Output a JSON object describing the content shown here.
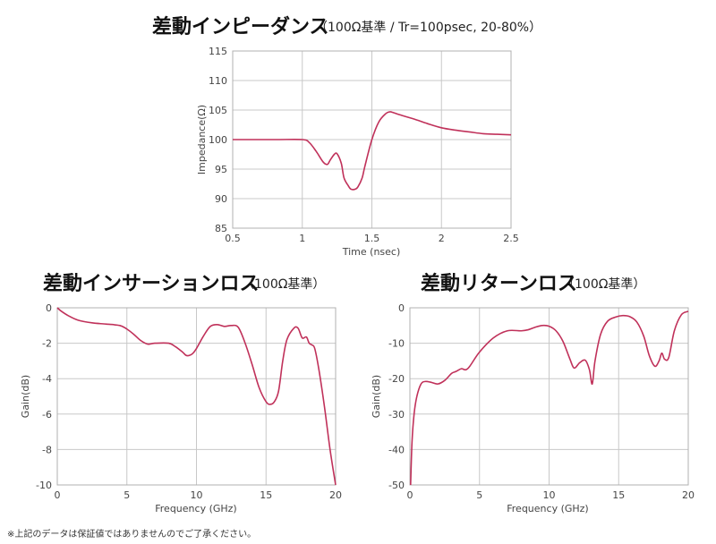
{
  "footnote": "※上記のデータは保証値ではありませんのでご了承ください。",
  "chart_data": [
    {
      "type": "line",
      "title": "差動インピーダンス",
      "subtitle": "（100Ω基準 / Tr=100psec, 20-80%）",
      "xlabel": "Time (nsec)",
      "ylabel": "Impedance(Ω)",
      "xlim": [
        0.5,
        2.5
      ],
      "ylim": [
        85,
        115
      ],
      "xticks": [
        0.5,
        1,
        1.5,
        2,
        2.5
      ],
      "xtick_labels": [
        "0.5",
        "1",
        "1.5",
        "2",
        "2.5"
      ],
      "yticks": [
        85,
        90,
        95,
        100,
        105,
        110,
        115
      ],
      "ytick_labels": [
        "85",
        "90",
        "95",
        "100",
        "105",
        "110",
        "115"
      ],
      "grid": true,
      "series": [
        {
          "x": [
            0.5,
            0.8,
            1.0,
            1.05,
            1.1,
            1.15,
            1.18,
            1.2,
            1.23,
            1.25,
            1.28,
            1.3,
            1.33,
            1.35,
            1.38,
            1.4,
            1.43,
            1.45,
            1.5,
            1.55,
            1.6,
            1.63,
            1.65,
            1.7,
            1.8,
            1.9,
            2.0,
            2.1,
            2.2,
            2.3,
            2.4,
            2.5
          ],
          "y": [
            100,
            100,
            100,
            99.5,
            98,
            96.2,
            95.8,
            96.5,
            97.5,
            97.6,
            96,
            93.5,
            92.2,
            91.6,
            91.6,
            92,
            93.5,
            95.5,
            100,
            103,
            104.4,
            104.7,
            104.6,
            104.2,
            103.5,
            102.7,
            102,
            101.6,
            101.3,
            101.0,
            100.9,
            100.8
          ]
        }
      ]
    },
    {
      "type": "line",
      "title": "差動インサーションロス",
      "subtitle": "（100Ω基準）",
      "xlabel": "Frequency (GHz)",
      "ylabel": "Gain(dB)",
      "xlim": [
        0,
        20
      ],
      "ylim": [
        -10,
        0
      ],
      "xticks": [
        0,
        5,
        10,
        15,
        20
      ],
      "xtick_labels": [
        "0",
        "5",
        "10",
        "15",
        "20"
      ],
      "yticks": [
        -10,
        -8,
        -6,
        -4,
        -2,
        0
      ],
      "ytick_labels": [
        "-10",
        "-8",
        "-6",
        "-4",
        "-2",
        "0"
      ],
      "grid": true,
      "series": [
        {
          "x": [
            0,
            0.3,
            0.8,
            1.5,
            2.5,
            3.5,
            4.5,
            5.0,
            5.5,
            6.0,
            6.5,
            7.0,
            8.0,
            8.5,
            9.0,
            9.3,
            9.7,
            10.0,
            10.5,
            11.0,
            11.5,
            12.0,
            12.5,
            13.0,
            13.5,
            14.0,
            14.5,
            15.0,
            15.3,
            15.6,
            15.9,
            16.2,
            16.5,
            17.0,
            17.3,
            17.6,
            17.9,
            18.1,
            18.3,
            18.5,
            18.8,
            19.2,
            19.6,
            20.0
          ],
          "y": [
            0,
            -0.2,
            -0.45,
            -0.7,
            -0.85,
            -0.92,
            -1.0,
            -1.2,
            -1.5,
            -1.85,
            -2.05,
            -2.0,
            -2.0,
            -2.2,
            -2.5,
            -2.7,
            -2.6,
            -2.3,
            -1.6,
            -1.05,
            -0.95,
            -1.05,
            -1.0,
            -1.1,
            -2.0,
            -3.2,
            -4.5,
            -5.3,
            -5.45,
            -5.3,
            -4.7,
            -3.0,
            -1.8,
            -1.15,
            -1.15,
            -1.7,
            -1.65,
            -2.0,
            -2.1,
            -2.3,
            -3.5,
            -5.6,
            -8.0,
            -10
          ]
        }
      ]
    },
    {
      "type": "line",
      "title": "差動リターンロス",
      "subtitle": "（100Ω基準）",
      "xlabel": "Frequency (GHz)",
      "ylabel": "Gain(dB)",
      "xlim": [
        0,
        20
      ],
      "ylim": [
        -50,
        0
      ],
      "xticks": [
        0,
        5,
        10,
        15,
        20
      ],
      "xtick_labels": [
        "0",
        "5",
        "10",
        "15",
        "20"
      ],
      "yticks": [
        -50,
        -40,
        -30,
        -20,
        -10,
        0
      ],
      "ytick_labels": [
        "-50",
        "-40",
        "-30",
        "-20",
        "-10",
        "0"
      ],
      "grid": true,
      "series": [
        {
          "x": [
            0.05,
            0.15,
            0.3,
            0.5,
            0.8,
            1.1,
            1.5,
            2.0,
            2.5,
            3.0,
            3.3,
            3.7,
            4.0,
            4.3,
            5.0,
            6.0,
            7.0,
            8.0,
            8.5,
            9.0,
            9.5,
            10.0,
            10.5,
            11.0,
            11.5,
            11.8,
            12.2,
            12.6,
            12.9,
            13.1,
            13.3,
            13.7,
            14.2,
            14.8,
            15.3,
            15.8,
            16.3,
            16.8,
            17.2,
            17.6,
            17.9,
            18.1,
            18.3,
            18.6,
            19.0,
            19.5,
            20.0
          ],
          "y": [
            -50,
            -38,
            -30,
            -25,
            -21.5,
            -20.8,
            -21,
            -21.5,
            -20.5,
            -18.5,
            -18,
            -17.2,
            -17.5,
            -16.5,
            -12.5,
            -8.5,
            -6.5,
            -6.5,
            -6.2,
            -5.5,
            -5.0,
            -5.2,
            -6.5,
            -9.5,
            -14.5,
            -17.0,
            -15.5,
            -14.8,
            -17.5,
            -21.5,
            -15,
            -7.5,
            -3.8,
            -2.6,
            -2.2,
            -2.5,
            -4.0,
            -8.0,
            -13.5,
            -16.5,
            -15,
            -12.8,
            -14.5,
            -14,
            -6.5,
            -2.0,
            -1.0
          ]
        }
      ]
    }
  ]
}
